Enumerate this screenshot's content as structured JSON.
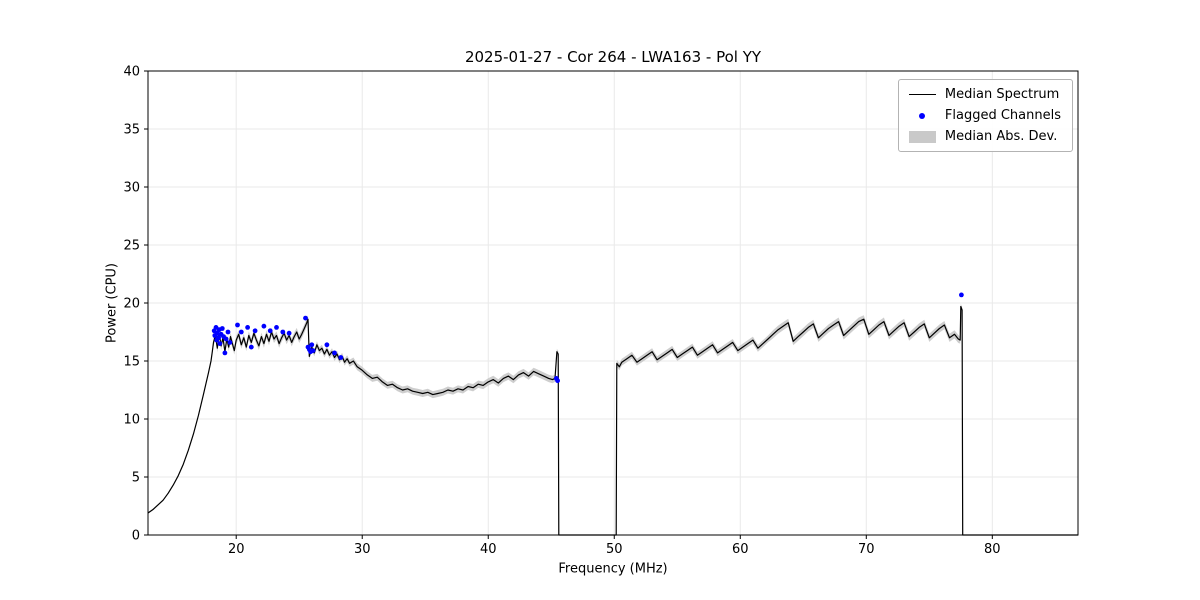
{
  "chart_data": {
    "type": "line",
    "title": "2025-01-27 - Cor 264 - LWA163 - Pol YY",
    "xlabel": "Frequency (MHz)",
    "ylabel": "Power (CPU)",
    "xlim": [
      13.0,
      86.8
    ],
    "ylim": [
      0,
      40
    ],
    "xticks": [
      20,
      30,
      40,
      50,
      60,
      70,
      80
    ],
    "yticks": [
      0,
      5,
      10,
      15,
      20,
      25,
      30,
      35,
      40
    ],
    "grid": true,
    "legend_position": "upper right",
    "legend": [
      "Median Spectrum",
      "Flagged Channels",
      "Median Abs. Dev."
    ],
    "colors": {
      "median_line": "#000000",
      "flagged": "#0000ff",
      "band": "#c9c9c9",
      "grid": "#e9e9e9"
    },
    "series": [
      {
        "name": "Median Spectrum",
        "type": "line_with_band",
        "points_format": [
          "freq_mhz",
          "power_cpu",
          "median_abs_dev"
        ],
        "points": [
          [
            13.0,
            1.9,
            0.06
          ],
          [
            13.4,
            2.2,
            0.06
          ],
          [
            13.8,
            2.6,
            0.06
          ],
          [
            14.2,
            3.0,
            0.06
          ],
          [
            14.6,
            3.6,
            0.06
          ],
          [
            15.0,
            4.3,
            0.07
          ],
          [
            15.4,
            5.1,
            0.07
          ],
          [
            15.8,
            6.1,
            0.08
          ],
          [
            16.2,
            7.3,
            0.08
          ],
          [
            16.6,
            8.7,
            0.09
          ],
          [
            17.0,
            10.3,
            0.1
          ],
          [
            17.4,
            12.1,
            0.1
          ],
          [
            17.8,
            14.0,
            0.12
          ],
          [
            18.0,
            15.0,
            0.15
          ],
          [
            18.1,
            15.8,
            0.2
          ],
          [
            18.2,
            16.6,
            0.35
          ],
          [
            18.35,
            17.2,
            0.35
          ],
          [
            18.5,
            16.1,
            0.35
          ],
          [
            18.65,
            17.4,
            0.35
          ],
          [
            18.8,
            16.3,
            0.35
          ],
          [
            18.95,
            17.0,
            0.35
          ],
          [
            19.1,
            15.8,
            0.35
          ],
          [
            19.25,
            16.9,
            0.35
          ],
          [
            19.4,
            16.2,
            0.35
          ],
          [
            19.55,
            17.1,
            0.35
          ],
          [
            19.7,
            16.5,
            0.35
          ],
          [
            19.85,
            15.9,
            0.35
          ],
          [
            20.0,
            16.8,
            0.35
          ],
          [
            20.2,
            17.3,
            0.35
          ],
          [
            20.4,
            16.4,
            0.35
          ],
          [
            20.6,
            17.0,
            0.35
          ],
          [
            20.8,
            16.2,
            0.35
          ],
          [
            21.0,
            17.2,
            0.35
          ],
          [
            21.2,
            16.6,
            0.35
          ],
          [
            21.4,
            17.4,
            0.35
          ],
          [
            21.6,
            16.8,
            0.35
          ],
          [
            21.8,
            16.3,
            0.35
          ],
          [
            22.0,
            17.1,
            0.35
          ],
          [
            22.2,
            16.5,
            0.35
          ],
          [
            22.4,
            17.3,
            0.35
          ],
          [
            22.6,
            16.7,
            0.35
          ],
          [
            22.8,
            17.5,
            0.35
          ],
          [
            23.0,
            16.9,
            0.35
          ],
          [
            23.2,
            17.2,
            0.35
          ],
          [
            23.4,
            16.5,
            0.35
          ],
          [
            23.6,
            17.0,
            0.35
          ],
          [
            23.8,
            17.4,
            0.35
          ],
          [
            24.0,
            16.8,
            0.35
          ],
          [
            24.2,
            17.2,
            0.35
          ],
          [
            24.4,
            16.6,
            0.35
          ],
          [
            24.6,
            17.1,
            0.35
          ],
          [
            24.8,
            17.5,
            0.35
          ],
          [
            25.0,
            16.9,
            0.35
          ],
          [
            25.2,
            17.3,
            0.35
          ],
          [
            25.4,
            17.8,
            0.35
          ],
          [
            25.6,
            18.3,
            0.35
          ],
          [
            25.7,
            18.6,
            0.35
          ],
          [
            25.8,
            15.4,
            0.3
          ],
          [
            26.0,
            16.2,
            0.3
          ],
          [
            26.2,
            15.7,
            0.3
          ],
          [
            26.4,
            16.4,
            0.3
          ],
          [
            26.6,
            15.9,
            0.3
          ],
          [
            26.8,
            16.1,
            0.3
          ],
          [
            27.0,
            15.6,
            0.3
          ],
          [
            27.2,
            16.0,
            0.3
          ],
          [
            27.4,
            15.5,
            0.3
          ],
          [
            27.6,
            15.8,
            0.3
          ],
          [
            27.8,
            15.3,
            0.3
          ],
          [
            28.0,
            15.6,
            0.3
          ],
          [
            28.2,
            15.1,
            0.3
          ],
          [
            28.4,
            15.4,
            0.3
          ],
          [
            28.6,
            14.9,
            0.3
          ],
          [
            28.8,
            15.2,
            0.3
          ],
          [
            29.0,
            14.8,
            0.3
          ],
          [
            29.3,
            15.0,
            0.3
          ],
          [
            29.6,
            14.5,
            0.3
          ],
          [
            30.0,
            14.2,
            0.3
          ],
          [
            30.4,
            13.8,
            0.3
          ],
          [
            30.8,
            13.5,
            0.3
          ],
          [
            31.2,
            13.6,
            0.3
          ],
          [
            31.6,
            13.2,
            0.3
          ],
          [
            32.0,
            12.9,
            0.3
          ],
          [
            32.4,
            13.0,
            0.3
          ],
          [
            32.8,
            12.7,
            0.3
          ],
          [
            33.2,
            12.5,
            0.3
          ],
          [
            33.6,
            12.6,
            0.3
          ],
          [
            34.0,
            12.4,
            0.3
          ],
          [
            34.4,
            12.3,
            0.3
          ],
          [
            34.8,
            12.2,
            0.3
          ],
          [
            35.2,
            12.3,
            0.3
          ],
          [
            35.6,
            12.1,
            0.3
          ],
          [
            36.0,
            12.2,
            0.3
          ],
          [
            36.4,
            12.3,
            0.3
          ],
          [
            36.8,
            12.5,
            0.3
          ],
          [
            37.2,
            12.4,
            0.3
          ],
          [
            37.6,
            12.6,
            0.3
          ],
          [
            38.0,
            12.5,
            0.3
          ],
          [
            38.4,
            12.8,
            0.3
          ],
          [
            38.8,
            12.7,
            0.32
          ],
          [
            39.2,
            13.0,
            0.32
          ],
          [
            39.6,
            12.9,
            0.32
          ],
          [
            40.0,
            13.2,
            0.32
          ],
          [
            40.4,
            13.4,
            0.32
          ],
          [
            40.8,
            13.1,
            0.32
          ],
          [
            41.2,
            13.5,
            0.32
          ],
          [
            41.6,
            13.7,
            0.32
          ],
          [
            42.0,
            13.4,
            0.32
          ],
          [
            42.4,
            13.8,
            0.32
          ],
          [
            42.8,
            14.0,
            0.32
          ],
          [
            43.2,
            13.7,
            0.32
          ],
          [
            43.6,
            14.1,
            0.32
          ],
          [
            44.0,
            13.9,
            0.32
          ],
          [
            44.4,
            13.7,
            0.32
          ],
          [
            44.8,
            13.5,
            0.32
          ],
          [
            45.1,
            13.4,
            0.32
          ],
          [
            45.3,
            13.5,
            0.3
          ],
          [
            45.45,
            15.8,
            0.25
          ],
          [
            45.55,
            15.6,
            0.25
          ],
          [
            45.6,
            0,
            0
          ],
          [
            46.5,
            0,
            0
          ],
          [
            48.0,
            0,
            0
          ],
          [
            49.5,
            0,
            0
          ],
          [
            50.15,
            0,
            0
          ],
          [
            50.2,
            14.8,
            0.3
          ],
          [
            50.4,
            14.5,
            0.3
          ],
          [
            50.6,
            14.9,
            0.3
          ],
          [
            51.0,
            15.2,
            0.3
          ],
          [
            51.4,
            15.5,
            0.3
          ],
          [
            51.8,
            14.9,
            0.3
          ],
          [
            52.2,
            15.2,
            0.3
          ],
          [
            52.6,
            15.5,
            0.3
          ],
          [
            53.0,
            15.8,
            0.3
          ],
          [
            53.4,
            15.1,
            0.3
          ],
          [
            53.8,
            15.4,
            0.3
          ],
          [
            54.2,
            15.7,
            0.3
          ],
          [
            54.6,
            16.0,
            0.3
          ],
          [
            55.0,
            15.3,
            0.3
          ],
          [
            55.4,
            15.6,
            0.3
          ],
          [
            55.8,
            15.9,
            0.3
          ],
          [
            56.2,
            16.2,
            0.3
          ],
          [
            56.6,
            15.5,
            0.3
          ],
          [
            57.0,
            15.8,
            0.3
          ],
          [
            57.4,
            16.1,
            0.3
          ],
          [
            57.8,
            16.4,
            0.3
          ],
          [
            58.2,
            15.7,
            0.3
          ],
          [
            58.6,
            16.0,
            0.3
          ],
          [
            59.0,
            16.3,
            0.3
          ],
          [
            59.4,
            16.6,
            0.3
          ],
          [
            59.8,
            15.9,
            0.3
          ],
          [
            60.2,
            16.2,
            0.3
          ],
          [
            60.6,
            16.5,
            0.3
          ],
          [
            61.0,
            16.8,
            0.3
          ],
          [
            61.4,
            16.1,
            0.3
          ],
          [
            61.8,
            16.5,
            0.3
          ],
          [
            62.2,
            16.9,
            0.3
          ],
          [
            62.6,
            17.3,
            0.35
          ],
          [
            63.0,
            17.7,
            0.35
          ],
          [
            63.4,
            18.0,
            0.35
          ],
          [
            63.8,
            18.3,
            0.35
          ],
          [
            64.2,
            16.7,
            0.35
          ],
          [
            64.6,
            17.1,
            0.35
          ],
          [
            65.0,
            17.5,
            0.35
          ],
          [
            65.4,
            17.9,
            0.35
          ],
          [
            65.8,
            18.2,
            0.35
          ],
          [
            66.2,
            17.0,
            0.35
          ],
          [
            66.6,
            17.4,
            0.35
          ],
          [
            67.0,
            17.8,
            0.35
          ],
          [
            67.4,
            18.1,
            0.35
          ],
          [
            67.8,
            18.4,
            0.35
          ],
          [
            68.2,
            17.2,
            0.35
          ],
          [
            68.6,
            17.6,
            0.35
          ],
          [
            69.0,
            18.0,
            0.35
          ],
          [
            69.4,
            18.4,
            0.35
          ],
          [
            69.8,
            18.6,
            0.35
          ],
          [
            70.2,
            17.3,
            0.35
          ],
          [
            70.6,
            17.7,
            0.35
          ],
          [
            71.0,
            18.1,
            0.35
          ],
          [
            71.4,
            18.4,
            0.35
          ],
          [
            71.8,
            17.2,
            0.35
          ],
          [
            72.2,
            17.6,
            0.35
          ],
          [
            72.6,
            18.0,
            0.35
          ],
          [
            73.0,
            18.3,
            0.35
          ],
          [
            73.4,
            17.1,
            0.35
          ],
          [
            73.8,
            17.5,
            0.35
          ],
          [
            74.2,
            17.9,
            0.35
          ],
          [
            74.6,
            18.2,
            0.35
          ],
          [
            75.0,
            17.0,
            0.35
          ],
          [
            75.4,
            17.4,
            0.35
          ],
          [
            75.8,
            17.8,
            0.35
          ],
          [
            76.2,
            18.1,
            0.35
          ],
          [
            76.6,
            17.0,
            0.35
          ],
          [
            77.0,
            17.3,
            0.35
          ],
          [
            77.3,
            16.9,
            0.35
          ],
          [
            77.45,
            16.8,
            0.3
          ],
          [
            77.5,
            19.7,
            0.25
          ],
          [
            77.6,
            19.4,
            0.25
          ],
          [
            77.65,
            0,
            0
          ],
          [
            79.0,
            0,
            0
          ],
          [
            81.0,
            0,
            0
          ],
          [
            83.0,
            0,
            0
          ],
          [
            85.0,
            0,
            0
          ],
          [
            86.8,
            0,
            0
          ]
        ]
      },
      {
        "name": "Flagged Channels",
        "type": "scatter",
        "points_format": [
          "freq_mhz",
          "power_cpu"
        ],
        "points": [
          [
            18.25,
            17.6
          ],
          [
            18.3,
            17.2
          ],
          [
            18.4,
            17.9
          ],
          [
            18.45,
            16.8
          ],
          [
            18.5,
            17.4
          ],
          [
            18.6,
            17.0
          ],
          [
            18.65,
            17.7
          ],
          [
            18.7,
            16.5
          ],
          [
            18.8,
            17.3
          ],
          [
            18.9,
            17.8
          ],
          [
            19.0,
            17.1
          ],
          [
            19.1,
            15.7
          ],
          [
            19.2,
            16.9
          ],
          [
            19.35,
            17.5
          ],
          [
            19.5,
            16.6
          ],
          [
            20.1,
            18.1
          ],
          [
            20.4,
            17.5
          ],
          [
            20.9,
            17.9
          ],
          [
            21.2,
            16.2
          ],
          [
            21.5,
            17.6
          ],
          [
            22.2,
            18.0
          ],
          [
            22.7,
            17.6
          ],
          [
            23.2,
            17.9
          ],
          [
            23.7,
            17.5
          ],
          [
            24.2,
            17.4
          ],
          [
            25.5,
            18.7
          ],
          [
            25.7,
            16.2
          ],
          [
            25.8,
            16.0
          ],
          [
            25.9,
            15.8
          ],
          [
            26.0,
            16.4
          ],
          [
            26.1,
            15.9
          ],
          [
            27.2,
            16.4
          ],
          [
            27.8,
            15.7
          ],
          [
            28.3,
            15.3
          ],
          [
            45.4,
            13.5
          ],
          [
            45.5,
            13.3
          ],
          [
            77.55,
            20.7
          ]
        ]
      },
      {
        "name": "Median Abs. Dev.",
        "type": "band"
      }
    ]
  }
}
